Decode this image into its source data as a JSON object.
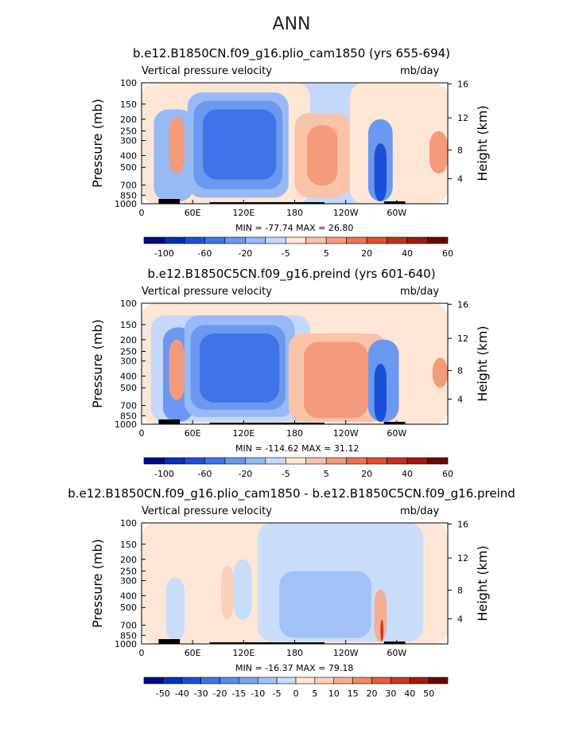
{
  "page_title": "ANN",
  "chart_data": [
    {
      "type": "heatmap",
      "title": "b.e12.B1850CN.f09_g16.plio_cam1850 (yrs 655-694)",
      "left_label": "Vertical pressure velocity",
      "right_label": "mb/day",
      "ylabel": "Pressure (mb)",
      "ylabel_right": "Height (km)",
      "x_ticks": [
        "0",
        "60E",
        "120E",
        "180",
        "120W",
        "60W"
      ],
      "y_ticks": [
        "100",
        "150",
        "200",
        "250",
        "300",
        "400",
        "500",
        "700",
        "850",
        "1000"
      ],
      "height_ticks": [
        "16",
        "12",
        "8",
        "4"
      ],
      "stats": "MIN = -77.74   MAX =  26.80",
      "colorbar": {
        "labels": [
          "-100",
          "-60",
          "-20",
          "-5",
          "5",
          "20",
          "40",
          "60"
        ],
        "colors": [
          "#08088a",
          "#0a2fb5",
          "#1c4fd8",
          "#3f74e8",
          "#6b98f0",
          "#97b9f5",
          "#c3d8fa",
          "#fde6d6",
          "#f9c3a9",
          "#f49b7c",
          "#ee7150",
          "#e0502f",
          "#c3301c",
          "#9e1a10",
          "#6e0505"
        ]
      }
    },
    {
      "type": "heatmap",
      "title": "b.e12.B1850C5CN.f09_g16.preind (yrs 601-640)",
      "left_label": "Vertical pressure velocity",
      "right_label": "mb/day",
      "ylabel": "Pressure (mb)",
      "ylabel_right": "Height (km)",
      "x_ticks": [
        "0",
        "60E",
        "120E",
        "180",
        "120W",
        "60W"
      ],
      "y_ticks": [
        "100",
        "150",
        "200",
        "250",
        "300",
        "400",
        "500",
        "700",
        "850",
        "1000"
      ],
      "height_ticks": [
        "16",
        "12",
        "8",
        "4"
      ],
      "stats": "MIN = -114.62   MAX =  31.12",
      "colorbar": {
        "labels": [
          "-100",
          "-60",
          "-20",
          "-5",
          "5",
          "20",
          "40",
          "60"
        ],
        "colors": [
          "#08088a",
          "#0a2fb5",
          "#1c4fd8",
          "#3f74e8",
          "#6b98f0",
          "#97b9f5",
          "#c3d8fa",
          "#fde6d6",
          "#f9c3a9",
          "#f49b7c",
          "#ee7150",
          "#e0502f",
          "#c3301c",
          "#9e1a10",
          "#6e0505"
        ]
      }
    },
    {
      "type": "heatmap",
      "title": "b.e12.B1850CN.f09_g16.plio_cam1850 - b.e12.B1850C5CN.f09_g16.preind",
      "left_label": "Vertical pressure velocity",
      "right_label": "mb/day",
      "ylabel": "Pressure (mb)",
      "ylabel_right": "Height (km)",
      "x_ticks": [
        "0",
        "60E",
        "120E",
        "180",
        "120W",
        "60W"
      ],
      "y_ticks": [
        "100",
        "150",
        "200",
        "250",
        "300",
        "400",
        "500",
        "700",
        "850",
        "1000"
      ],
      "height_ticks": [
        "16",
        "12",
        "8",
        "4"
      ],
      "stats": "MIN = -16.37   MAX =  79.18",
      "colorbar": {
        "labels": [
          "-50",
          "-40",
          "-30",
          "-20",
          "-15",
          "-10",
          "-5",
          "0",
          "5",
          "10",
          "15",
          "20",
          "30",
          "40",
          "50"
        ],
        "colors": [
          "#08088a",
          "#0a2fb5",
          "#1c4fd8",
          "#3f74e8",
          "#5a8bee",
          "#7aa4f2",
          "#a2c1f6",
          "#c9dcfa",
          "#fde6d6",
          "#fbd0b9",
          "#f6ae90",
          "#f08a66",
          "#e5603c",
          "#c93a20",
          "#a11b10",
          "#6e0505"
        ]
      }
    }
  ]
}
